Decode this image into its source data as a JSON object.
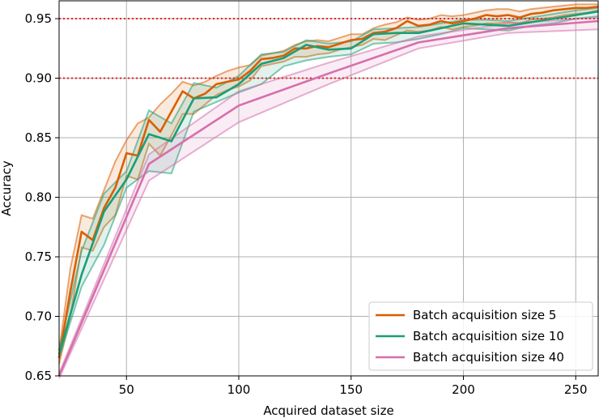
{
  "chart_data": {
    "type": "line",
    "title": "",
    "xlabel": "Acquired dataset size",
    "ylabel": "Accuracy",
    "xlim": [
      20,
      260
    ],
    "ylim": [
      0.65,
      0.965
    ],
    "xticks": [
      50,
      100,
      150,
      200,
      250
    ],
    "yticks": [
      0.65,
      0.7,
      0.75,
      0.8,
      0.85,
      0.9,
      0.95
    ],
    "grid": true,
    "legend_position": "lower-right",
    "reference_lines": [
      {
        "y": 0.95,
        "color": "#e8262a",
        "style": "dotted"
      },
      {
        "y": 0.9,
        "color": "#e8262a",
        "style": "dotted"
      }
    ],
    "series": [
      {
        "name": "Batch acquisition size 5",
        "color": "#d95f02",
        "x": [
          20,
          25,
          30,
          35,
          40,
          45,
          50,
          55,
          60,
          65,
          70,
          75,
          80,
          85,
          90,
          95,
          100,
          105,
          110,
          115,
          120,
          125,
          130,
          135,
          140,
          145,
          150,
          155,
          160,
          165,
          170,
          175,
          180,
          185,
          190,
          195,
          200,
          205,
          210,
          215,
          220,
          225,
          230,
          235,
          240,
          245,
          250,
          255,
          260
        ],
        "y": [
          0.665,
          0.721,
          0.771,
          0.764,
          0.791,
          0.808,
          0.837,
          0.835,
          0.865,
          0.855,
          0.872,
          0.889,
          0.883,
          0.887,
          0.895,
          0.897,
          0.899,
          0.906,
          0.916,
          0.917,
          0.919,
          0.925,
          0.925,
          0.927,
          0.926,
          0.929,
          0.932,
          0.933,
          0.938,
          0.939,
          0.942,
          0.948,
          0.944,
          0.945,
          0.948,
          0.946,
          0.948,
          0.95,
          0.953,
          0.952,
          0.953,
          0.951,
          0.954,
          0.955,
          0.957,
          0.958,
          0.959,
          0.959,
          0.96
        ],
        "lower": [
          0.66,
          0.7,
          0.758,
          0.755,
          0.775,
          0.785,
          0.818,
          0.815,
          0.845,
          0.835,
          0.852,
          0.87,
          0.87,
          0.878,
          0.886,
          0.89,
          0.893,
          0.898,
          0.91,
          0.912,
          0.914,
          0.918,
          0.918,
          0.92,
          0.921,
          0.924,
          0.926,
          0.928,
          0.933,
          0.932,
          0.936,
          0.94,
          0.939,
          0.94,
          0.943,
          0.941,
          0.943,
          0.944,
          0.946,
          0.946,
          0.947,
          0.946,
          0.949,
          0.95,
          0.951,
          0.953,
          0.954,
          0.955,
          0.957
        ],
        "upper": [
          0.671,
          0.74,
          0.785,
          0.782,
          0.806,
          0.83,
          0.848,
          0.862,
          0.867,
          0.878,
          0.887,
          0.897,
          0.894,
          0.897,
          0.902,
          0.906,
          0.909,
          0.911,
          0.919,
          0.921,
          0.923,
          0.928,
          0.931,
          0.932,
          0.931,
          0.934,
          0.937,
          0.937,
          0.942,
          0.945,
          0.947,
          0.951,
          0.949,
          0.95,
          0.953,
          0.952,
          0.953,
          0.955,
          0.957,
          0.958,
          0.958,
          0.956,
          0.958,
          0.959,
          0.96,
          0.961,
          0.962,
          0.962,
          0.962
        ]
      },
      {
        "name": "Batch acquisition size 10",
        "color": "#1b9e77",
        "x": [
          20,
          30,
          40,
          50,
          60,
          70,
          80,
          90,
          100,
          110,
          120,
          130,
          140,
          150,
          160,
          170,
          180,
          190,
          200,
          210,
          220,
          230,
          240,
          250,
          260
        ],
        "y": [
          0.668,
          0.735,
          0.788,
          0.815,
          0.853,
          0.847,
          0.883,
          0.884,
          0.895,
          0.912,
          0.917,
          0.928,
          0.924,
          0.925,
          0.937,
          0.938,
          0.938,
          0.942,
          0.946,
          0.945,
          0.944,
          0.947,
          0.95,
          0.953,
          0.956
        ],
        "lower": [
          0.665,
          0.725,
          0.76,
          0.808,
          0.822,
          0.82,
          0.872,
          0.88,
          0.888,
          0.895,
          0.91,
          0.915,
          0.918,
          0.92,
          0.929,
          0.93,
          0.933,
          0.937,
          0.942,
          0.941,
          0.94,
          0.944,
          0.946,
          0.95,
          0.952
        ],
        "upper": [
          0.672,
          0.755,
          0.803,
          0.822,
          0.873,
          0.862,
          0.896,
          0.892,
          0.902,
          0.92,
          0.922,
          0.932,
          0.929,
          0.931,
          0.941,
          0.942,
          0.943,
          0.946,
          0.949,
          0.949,
          0.948,
          0.951,
          0.954,
          0.957,
          0.959
        ]
      },
      {
        "name": "Batch acquisition size 40",
        "color": "#d66fad",
        "x": [
          20,
          60,
          100,
          140,
          180,
          220,
          260
        ],
        "y": [
          0.65,
          0.828,
          0.877,
          0.904,
          0.93,
          0.942,
          0.948
        ],
        "lower": [
          0.648,
          0.814,
          0.863,
          0.895,
          0.925,
          0.938,
          0.941
        ],
        "upper": [
          0.652,
          0.836,
          0.889,
          0.913,
          0.935,
          0.946,
          0.951
        ]
      }
    ]
  }
}
